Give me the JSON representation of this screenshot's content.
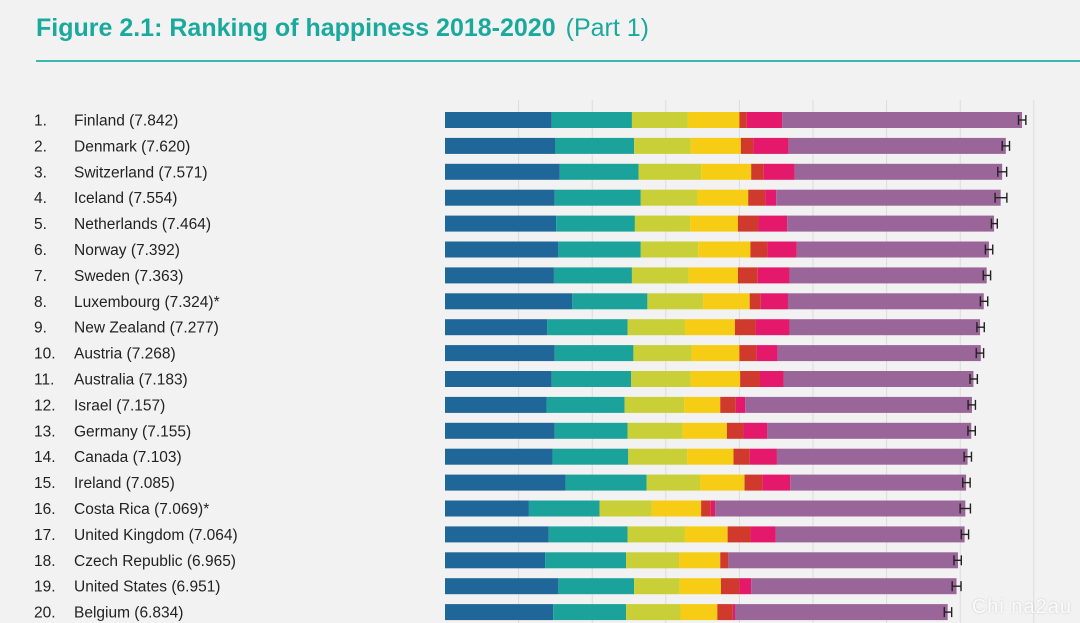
{
  "title": "Figure 2.1: Ranking of happiness 2018-2020",
  "subtitle": "(Part 1)",
  "watermark": "Chi na2au",
  "chart_data": {
    "type": "bar",
    "stacked": true,
    "orientation": "horizontal",
    "categories": [
      "1. Finland (7.842)",
      "2. Denmark (7.620)",
      "3. Switzerland (7.571)",
      "4. Iceland (7.554)",
      "5. Netherlands (7.464)",
      "6. Norway (7.392)",
      "7. Sweden (7.363)",
      "8. Luxembourg (7.324)*",
      "9. New Zealand (7.277)",
      "10. Austria (7.268)",
      "11. Australia (7.183)",
      "12. Israel (7.157)",
      "13. Germany (7.155)",
      "14. Canada (7.103)",
      "15. Ireland (7.085)",
      "16. Costa Rica (7.069)*",
      "17. United Kingdom (7.064)",
      "18. Czech Republic (6.965)",
      "19. United States (6.951)",
      "20. Belgium (6.834)"
    ],
    "ranks": [
      "1.",
      "2.",
      "3.",
      "4.",
      "5.",
      "6.",
      "7.",
      "8.",
      "9.",
      "10.",
      "11.",
      "12.",
      "13.",
      "14.",
      "15.",
      "16.",
      "17.",
      "18.",
      "19.",
      "20."
    ],
    "countries": [
      "Finland (7.842)",
      "Denmark (7.620)",
      "Switzerland (7.571)",
      "Iceland (7.554)",
      "Netherlands (7.464)",
      "Norway (7.392)",
      "Sweden (7.363)",
      "Luxembourg (7.324)*",
      "New Zealand (7.277)",
      "Austria (7.268)",
      "Australia (7.183)",
      "Israel (7.157)",
      "Germany (7.155)",
      "Canada (7.103)",
      "Ireland (7.085)",
      "Costa Rica (7.069)*",
      "United Kingdom (7.064)",
      "Czech Republic (6.965)",
      "United States (6.951)",
      "Belgium (6.834)"
    ],
    "totals": [
      7.842,
      7.62,
      7.571,
      7.554,
      7.464,
      7.392,
      7.363,
      7.324,
      7.277,
      7.268,
      7.183,
      7.157,
      7.155,
      7.103,
      7.085,
      7.069,
      7.064,
      6.965,
      6.951,
      6.834
    ],
    "series": [
      {
        "color": "#1f6699",
        "values": [
          1.45,
          1.5,
          1.56,
          1.49,
          1.51,
          1.54,
          1.48,
          1.73,
          1.39,
          1.49,
          1.45,
          1.38,
          1.49,
          1.46,
          1.64,
          1.14,
          1.41,
          1.36,
          1.54,
          1.47
        ]
      },
      {
        "color": "#1ba39b",
        "values": [
          1.09,
          1.07,
          1.07,
          1.17,
          1.07,
          1.12,
          1.06,
          1.02,
          1.09,
          1.07,
          1.08,
          1.06,
          0.99,
          1.03,
          1.1,
          0.96,
          1.07,
          1.1,
          1.03,
          0.99
        ]
      },
      {
        "color": "#c9cf36",
        "values": [
          0.76,
          0.77,
          0.85,
          0.77,
          0.75,
          0.78,
          0.77,
          0.76,
          0.78,
          0.79,
          0.81,
          0.81,
          0.75,
          0.8,
          0.73,
          0.71,
          0.78,
          0.72,
          0.62,
          0.74
        ]
      },
      {
        "color": "#f7cc14",
        "values": [
          0.7,
          0.68,
          0.68,
          0.69,
          0.65,
          0.71,
          0.67,
          0.63,
          0.68,
          0.65,
          0.67,
          0.49,
          0.6,
          0.63,
          0.6,
          0.67,
          0.58,
          0.56,
          0.56,
          0.5
        ]
      },
      {
        "color": "#d03a2c",
        "values": [
          0.1,
          0.17,
          0.17,
          0.23,
          0.28,
          0.23,
          0.27,
          0.15,
          0.28,
          0.23,
          0.27,
          0.21,
          0.22,
          0.22,
          0.24,
          0.13,
          0.31,
          0.11,
          0.25,
          0.21
        ]
      },
      {
        "color": "#e4196b",
        "values": [
          0.48,
          0.48,
          0.42,
          0.15,
          0.39,
          0.4,
          0.43,
          0.37,
          0.46,
          0.29,
          0.32,
          0.13,
          0.33,
          0.37,
          0.38,
          0.06,
          0.34,
          0.0,
          0.16,
          0.03
        ]
      },
      {
        "color": "#9a6699",
        "values": [
          3.26,
          2.95,
          2.82,
          3.05,
          2.81,
          2.61,
          2.68,
          2.66,
          2.59,
          2.76,
          2.58,
          3.08,
          2.77,
          2.59,
          2.39,
          3.4,
          2.57,
          3.12,
          2.79,
          2.89
        ]
      }
    ],
    "ci_half_width": [
      0.05,
      0.05,
      0.06,
      0.08,
      0.04,
      0.05,
      0.05,
      0.05,
      0.05,
      0.05,
      0.05,
      0.05,
      0.05,
      0.05,
      0.05,
      0.07,
      0.05,
      0.05,
      0.06,
      0.05
    ],
    "xlim": [
      0,
      8.0
    ],
    "grid": true,
    "legend": "none"
  }
}
